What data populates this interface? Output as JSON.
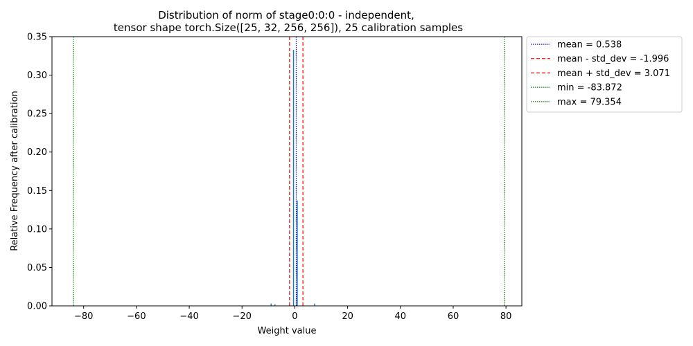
{
  "chart_data": {
    "type": "bar",
    "title": [
      "Distribution of norm of stage0:0:0 - independent,",
      "tensor shape torch.Size([25, 32, 256, 256]), 25 calibration samples"
    ],
    "xlabel": "Weight value",
    "ylabel": "Relative Frequency after calibration",
    "xlim": [
      -92,
      86
    ],
    "ylim": [
      0,
      0.35
    ],
    "xticks": [
      -80,
      -60,
      -40,
      -20,
      0,
      20,
      40,
      60,
      80
    ],
    "xtick_labels": [
      "−80",
      "−60",
      "−40",
      "−20",
      "0",
      "20",
      "40",
      "60",
      "80"
    ],
    "yticks": [
      0.0,
      0.05,
      0.1,
      0.15,
      0.2,
      0.25,
      0.3,
      0.35
    ],
    "ytick_labels": [
      "0.00",
      "0.05",
      "0.10",
      "0.15",
      "0.20",
      "0.25",
      "0.30",
      "0.35"
    ],
    "bar_color": "#1f77b4",
    "bars": [
      {
        "x": -9.0,
        "height": 0.003
      },
      {
        "x": -7.5,
        "height": 0.002
      },
      {
        "x": -0.5,
        "height": 0.333
      },
      {
        "x": 0.9,
        "height": 0.137
      },
      {
        "x": 7.5,
        "height": 0.003
      }
    ],
    "vlines": [
      {
        "label": "mean = 0.538",
        "x": 0.538,
        "color": "#0000ff",
        "style": "dotted"
      },
      {
        "label": "mean - std_dev = -1.996",
        "x": -1.996,
        "color": "#ff0000",
        "style": "dashed"
      },
      {
        "label": "mean + std_dev = 3.071",
        "x": 3.071,
        "color": "#ff0000",
        "style": "dashed"
      },
      {
        "label": "min = -83.872",
        "x": -83.872,
        "color": "#008000",
        "style": "dotted"
      },
      {
        "label": "max = 79.354",
        "x": 79.354,
        "color": "#008000",
        "style": "dotted"
      }
    ],
    "legend_position": "outside-right-top",
    "grid": false
  }
}
